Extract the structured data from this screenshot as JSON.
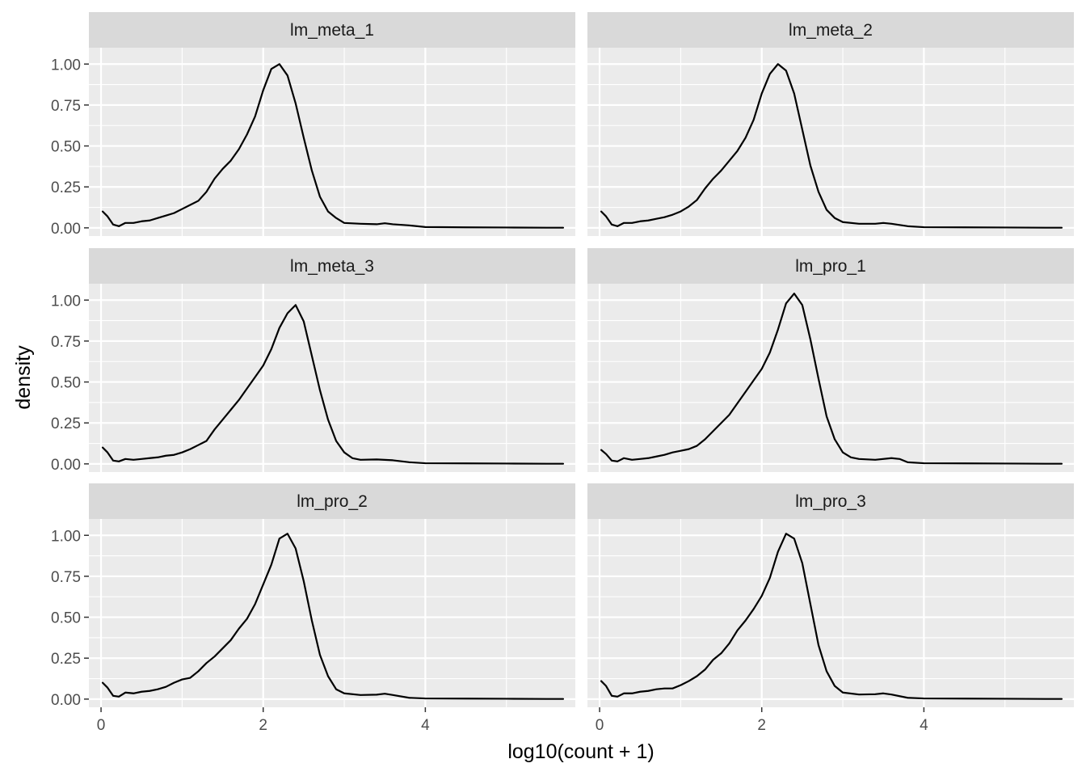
{
  "chart_data": {
    "type": "line",
    "geom": "density",
    "facet_layout": "3 rows x 2 cols",
    "xlabel": "log10(count + 1)",
    "ylabel": "density",
    "xlim": [
      -0.15,
      5.85
    ],
    "ylim": [
      -0.05,
      1.1
    ],
    "x_ticks": [
      0,
      2,
      4
    ],
    "x_tick_labels": [
      "0",
      "2",
      "4"
    ],
    "y_ticks": [
      0,
      0.25,
      0.5,
      0.75,
      1.0
    ],
    "y_tick_labels": [
      "0.00",
      "0.25",
      "0.50",
      "0.75",
      "1.00"
    ],
    "grid": true,
    "colors": {
      "panel_bg": "#ebebeb",
      "strip_bg": "#d9d9d9",
      "grid": "#ffffff",
      "line": "#000000"
    },
    "panels": [
      {
        "label": "lm_meta_1",
        "points": [
          [
            0.02,
            0.1
          ],
          [
            0.08,
            0.07
          ],
          [
            0.15,
            0.02
          ],
          [
            0.22,
            0.01
          ],
          [
            0.3,
            0.03
          ],
          [
            0.4,
            0.03
          ],
          [
            0.5,
            0.04
          ],
          [
            0.6,
            0.045
          ],
          [
            0.7,
            0.06
          ],
          [
            0.8,
            0.075
          ],
          [
            0.9,
            0.09
          ],
          [
            1.0,
            0.115
          ],
          [
            1.1,
            0.14
          ],
          [
            1.2,
            0.165
          ],
          [
            1.3,
            0.22
          ],
          [
            1.4,
            0.3
          ],
          [
            1.5,
            0.36
          ],
          [
            1.6,
            0.41
          ],
          [
            1.7,
            0.48
          ],
          [
            1.8,
            0.57
          ],
          [
            1.9,
            0.68
          ],
          [
            2.0,
            0.84
          ],
          [
            2.1,
            0.97
          ],
          [
            2.2,
            1.0
          ],
          [
            2.3,
            0.93
          ],
          [
            2.4,
            0.76
          ],
          [
            2.5,
            0.55
          ],
          [
            2.6,
            0.35
          ],
          [
            2.7,
            0.19
          ],
          [
            2.8,
            0.1
          ],
          [
            2.9,
            0.06
          ],
          [
            3.0,
            0.03
          ],
          [
            3.2,
            0.025
          ],
          [
            3.4,
            0.022
          ],
          [
            3.5,
            0.028
          ],
          [
            3.6,
            0.022
          ],
          [
            3.8,
            0.015
          ],
          [
            4.0,
            0.005
          ],
          [
            4.5,
            0.003
          ],
          [
            5.0,
            0.002
          ],
          [
            5.5,
            0.001
          ],
          [
            5.7,
            0.001
          ]
        ]
      },
      {
        "label": "lm_meta_2",
        "points": [
          [
            0.02,
            0.1
          ],
          [
            0.08,
            0.07
          ],
          [
            0.15,
            0.02
          ],
          [
            0.22,
            0.01
          ],
          [
            0.3,
            0.03
          ],
          [
            0.4,
            0.03
          ],
          [
            0.5,
            0.04
          ],
          [
            0.6,
            0.045
          ],
          [
            0.7,
            0.055
          ],
          [
            0.8,
            0.065
          ],
          [
            0.9,
            0.08
          ],
          [
            1.0,
            0.1
          ],
          [
            1.1,
            0.13
          ],
          [
            1.2,
            0.17
          ],
          [
            1.3,
            0.24
          ],
          [
            1.4,
            0.3
          ],
          [
            1.5,
            0.35
          ],
          [
            1.6,
            0.41
          ],
          [
            1.7,
            0.47
          ],
          [
            1.8,
            0.55
          ],
          [
            1.9,
            0.66
          ],
          [
            2.0,
            0.82
          ],
          [
            2.1,
            0.94
          ],
          [
            2.2,
            1.0
          ],
          [
            2.3,
            0.96
          ],
          [
            2.4,
            0.82
          ],
          [
            2.5,
            0.6
          ],
          [
            2.6,
            0.38
          ],
          [
            2.7,
            0.22
          ],
          [
            2.8,
            0.11
          ],
          [
            2.9,
            0.06
          ],
          [
            3.0,
            0.035
          ],
          [
            3.2,
            0.025
          ],
          [
            3.4,
            0.025
          ],
          [
            3.5,
            0.03
          ],
          [
            3.6,
            0.025
          ],
          [
            3.8,
            0.01
          ],
          [
            4.0,
            0.004
          ],
          [
            4.5,
            0.003
          ],
          [
            5.0,
            0.002
          ],
          [
            5.5,
            0.001
          ],
          [
            5.7,
            0.001
          ]
        ]
      },
      {
        "label": "lm_meta_3",
        "points": [
          [
            0.02,
            0.1
          ],
          [
            0.08,
            0.07
          ],
          [
            0.15,
            0.02
          ],
          [
            0.22,
            0.015
          ],
          [
            0.3,
            0.03
          ],
          [
            0.4,
            0.025
          ],
          [
            0.5,
            0.03
          ],
          [
            0.6,
            0.035
          ],
          [
            0.7,
            0.04
          ],
          [
            0.8,
            0.05
          ],
          [
            0.9,
            0.055
          ],
          [
            1.0,
            0.07
          ],
          [
            1.1,
            0.09
          ],
          [
            1.2,
            0.115
          ],
          [
            1.3,
            0.14
          ],
          [
            1.4,
            0.21
          ],
          [
            1.5,
            0.27
          ],
          [
            1.6,
            0.33
          ],
          [
            1.7,
            0.39
          ],
          [
            1.8,
            0.46
          ],
          [
            1.9,
            0.53
          ],
          [
            2.0,
            0.6
          ],
          [
            2.1,
            0.7
          ],
          [
            2.2,
            0.83
          ],
          [
            2.3,
            0.92
          ],
          [
            2.4,
            0.97
          ],
          [
            2.5,
            0.87
          ],
          [
            2.6,
            0.66
          ],
          [
            2.7,
            0.45
          ],
          [
            2.8,
            0.27
          ],
          [
            2.9,
            0.14
          ],
          [
            3.0,
            0.07
          ],
          [
            3.1,
            0.035
          ],
          [
            3.2,
            0.025
          ],
          [
            3.4,
            0.027
          ],
          [
            3.6,
            0.022
          ],
          [
            3.8,
            0.01
          ],
          [
            4.0,
            0.004
          ],
          [
            4.5,
            0.003
          ],
          [
            5.0,
            0.002
          ],
          [
            5.5,
            0.001
          ],
          [
            5.7,
            0.001
          ]
        ]
      },
      {
        "label": "lm_pro_1",
        "points": [
          [
            0.02,
            0.085
          ],
          [
            0.08,
            0.06
          ],
          [
            0.15,
            0.02
          ],
          [
            0.22,
            0.015
          ],
          [
            0.3,
            0.035
          ],
          [
            0.4,
            0.025
          ],
          [
            0.5,
            0.03
          ],
          [
            0.6,
            0.035
          ],
          [
            0.7,
            0.045
          ],
          [
            0.8,
            0.055
          ],
          [
            0.9,
            0.07
          ],
          [
            1.0,
            0.08
          ],
          [
            1.1,
            0.09
          ],
          [
            1.2,
            0.11
          ],
          [
            1.3,
            0.15
          ],
          [
            1.4,
            0.2
          ],
          [
            1.5,
            0.25
          ],
          [
            1.6,
            0.3
          ],
          [
            1.7,
            0.37
          ],
          [
            1.8,
            0.44
          ],
          [
            1.9,
            0.51
          ],
          [
            2.0,
            0.58
          ],
          [
            2.1,
            0.68
          ],
          [
            2.2,
            0.82
          ],
          [
            2.3,
            0.98
          ],
          [
            2.4,
            1.04
          ],
          [
            2.5,
            0.97
          ],
          [
            2.6,
            0.76
          ],
          [
            2.7,
            0.52
          ],
          [
            2.8,
            0.29
          ],
          [
            2.9,
            0.15
          ],
          [
            3.0,
            0.07
          ],
          [
            3.1,
            0.04
          ],
          [
            3.2,
            0.03
          ],
          [
            3.4,
            0.025
          ],
          [
            3.6,
            0.035
          ],
          [
            3.7,
            0.03
          ],
          [
            3.8,
            0.01
          ],
          [
            4.0,
            0.004
          ],
          [
            4.5,
            0.003
          ],
          [
            5.0,
            0.002
          ],
          [
            5.5,
            0.001
          ],
          [
            5.7,
            0.001
          ]
        ]
      },
      {
        "label": "lm_pro_2",
        "points": [
          [
            0.02,
            0.1
          ],
          [
            0.08,
            0.07
          ],
          [
            0.15,
            0.02
          ],
          [
            0.22,
            0.015
          ],
          [
            0.3,
            0.04
          ],
          [
            0.4,
            0.035
          ],
          [
            0.5,
            0.045
          ],
          [
            0.6,
            0.05
          ],
          [
            0.7,
            0.06
          ],
          [
            0.8,
            0.075
          ],
          [
            0.9,
            0.1
          ],
          [
            1.0,
            0.12
          ],
          [
            1.1,
            0.13
          ],
          [
            1.2,
            0.17
          ],
          [
            1.3,
            0.22
          ],
          [
            1.4,
            0.26
          ],
          [
            1.5,
            0.31
          ],
          [
            1.6,
            0.36
          ],
          [
            1.7,
            0.43
          ],
          [
            1.8,
            0.49
          ],
          [
            1.9,
            0.58
          ],
          [
            2.0,
            0.7
          ],
          [
            2.1,
            0.82
          ],
          [
            2.2,
            0.98
          ],
          [
            2.3,
            1.01
          ],
          [
            2.4,
            0.92
          ],
          [
            2.5,
            0.72
          ],
          [
            2.6,
            0.48
          ],
          [
            2.7,
            0.27
          ],
          [
            2.8,
            0.14
          ],
          [
            2.9,
            0.06
          ],
          [
            3.0,
            0.035
          ],
          [
            3.2,
            0.025
          ],
          [
            3.4,
            0.027
          ],
          [
            3.5,
            0.033
          ],
          [
            3.6,
            0.025
          ],
          [
            3.8,
            0.008
          ],
          [
            4.0,
            0.004
          ],
          [
            4.5,
            0.003
          ],
          [
            5.0,
            0.002
          ],
          [
            5.5,
            0.001
          ],
          [
            5.7,
            0.001
          ]
        ]
      },
      {
        "label": "lm_pro_3",
        "points": [
          [
            0.02,
            0.11
          ],
          [
            0.08,
            0.08
          ],
          [
            0.15,
            0.02
          ],
          [
            0.22,
            0.015
          ],
          [
            0.3,
            0.035
          ],
          [
            0.4,
            0.035
          ],
          [
            0.5,
            0.045
          ],
          [
            0.6,
            0.05
          ],
          [
            0.7,
            0.06
          ],
          [
            0.8,
            0.065
          ],
          [
            0.9,
            0.065
          ],
          [
            1.0,
            0.085
          ],
          [
            1.1,
            0.11
          ],
          [
            1.2,
            0.14
          ],
          [
            1.3,
            0.18
          ],
          [
            1.4,
            0.24
          ],
          [
            1.5,
            0.28
          ],
          [
            1.6,
            0.34
          ],
          [
            1.7,
            0.42
          ],
          [
            1.8,
            0.48
          ],
          [
            1.9,
            0.55
          ],
          [
            2.0,
            0.63
          ],
          [
            2.1,
            0.74
          ],
          [
            2.2,
            0.9
          ],
          [
            2.3,
            1.01
          ],
          [
            2.4,
            0.98
          ],
          [
            2.5,
            0.83
          ],
          [
            2.6,
            0.58
          ],
          [
            2.7,
            0.33
          ],
          [
            2.8,
            0.17
          ],
          [
            2.9,
            0.08
          ],
          [
            3.0,
            0.04
          ],
          [
            3.2,
            0.028
          ],
          [
            3.4,
            0.03
          ],
          [
            3.5,
            0.035
          ],
          [
            3.6,
            0.028
          ],
          [
            3.8,
            0.008
          ],
          [
            4.0,
            0.004
          ],
          [
            4.5,
            0.003
          ],
          [
            5.0,
            0.002
          ],
          [
            5.5,
            0.001
          ],
          [
            5.7,
            0.001
          ]
        ]
      }
    ]
  }
}
